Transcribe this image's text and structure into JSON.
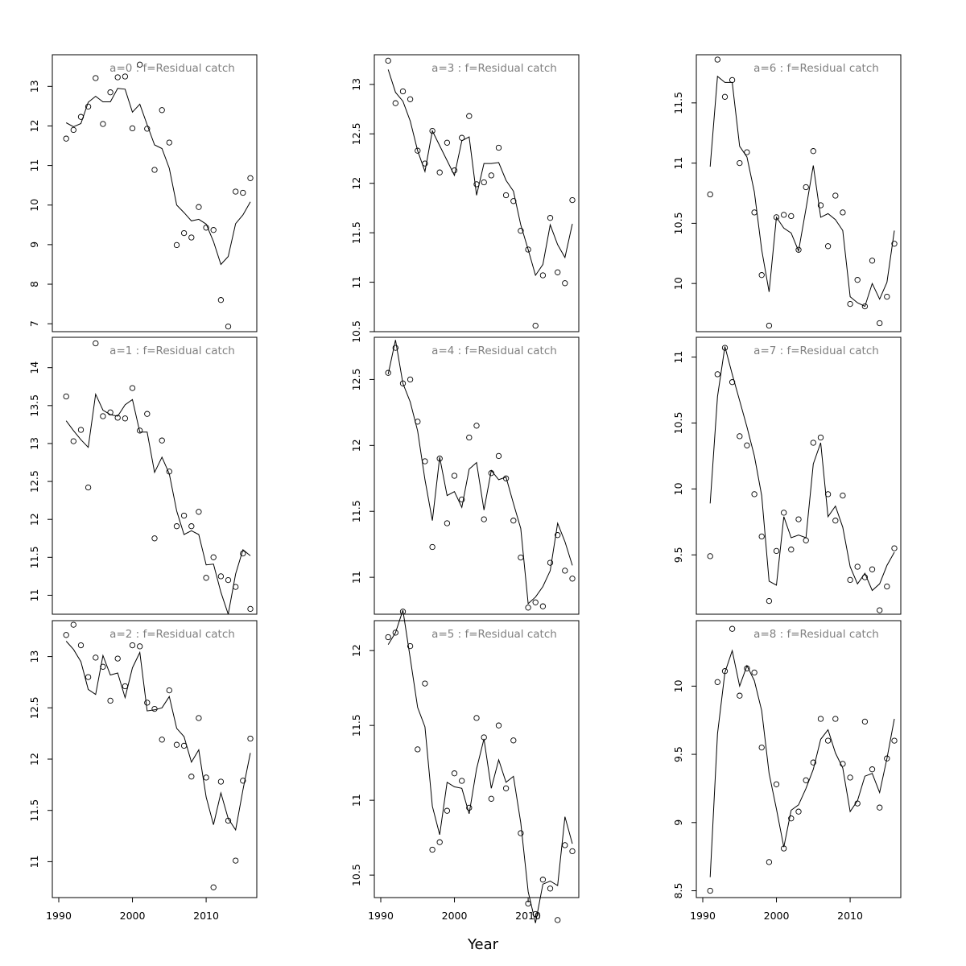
{
  "chart_data": {
    "type": "scatter",
    "xlabel": "Year",
    "x_axis": {
      "ticks": [
        1990,
        2000,
        2010
      ],
      "range": [
        1990,
        2016
      ]
    },
    "years": [
      1991,
      1992,
      1993,
      1994,
      1995,
      1996,
      1997,
      1998,
      1999,
      2000,
      2001,
      2002,
      2003,
      2004,
      2005,
      2006,
      2007,
      2008,
      2009,
      2010,
      2011,
      2012,
      2013,
      2014,
      2015,
      2016
    ],
    "panels": [
      {
        "title": "a=0  :  f=Residual catch",
        "ylim": [
          6.8,
          13.8
        ],
        "yticks": [
          7,
          8,
          9,
          10,
          11,
          12,
          13
        ],
        "observed": [
          11.68,
          11.9,
          12.23,
          12.49,
          13.21,
          12.05,
          12.85,
          13.23,
          13.25,
          11.94,
          13.55,
          11.93,
          10.89,
          12.4,
          11.58,
          8.99,
          9.29,
          9.18,
          9.95,
          9.43,
          9.37,
          7.6,
          6.93,
          10.34,
          10.31,
          10.68
        ],
        "fitted": [
          12.08,
          11.98,
          12.06,
          12.6,
          12.75,
          12.61,
          12.61,
          12.95,
          12.93,
          12.35,
          12.55,
          12.03,
          11.52,
          11.43,
          10.93,
          10.0,
          9.81,
          9.6,
          9.64,
          9.52,
          9.08,
          8.5,
          8.7,
          9.53,
          9.75,
          10.08
        ]
      },
      {
        "title": "a=3  :  f=Residual catch",
        "ylim": [
          10.5,
          13.3
        ],
        "yticks": [
          10.5,
          11.0,
          11.5,
          12.0,
          12.5,
          13.0
        ],
        "observed": [
          13.24,
          12.81,
          12.93,
          12.85,
          12.33,
          12.2,
          12.53,
          12.11,
          12.41,
          12.13,
          12.46,
          12.68,
          11.99,
          12.01,
          12.08,
          12.36,
          11.88,
          11.82,
          11.52,
          11.33,
          10.56,
          11.07,
          11.65,
          11.1,
          10.99,
          11.83
        ],
        "fitted": [
          13.15,
          12.92,
          12.83,
          12.63,
          12.33,
          12.12,
          12.53,
          12.38,
          12.23,
          12.08,
          12.43,
          12.47,
          11.88,
          12.2,
          12.2,
          12.21,
          12.03,
          11.92,
          11.58,
          11.33,
          11.07,
          11.18,
          11.58,
          11.38,
          11.25,
          11.59
        ]
      },
      {
        "title": "a=6  :  f=Residual catch",
        "ylim": [
          9.6,
          11.9
        ],
        "yticks": [
          10.0,
          10.5,
          11.0,
          11.5
        ],
        "observed": [
          10.74,
          11.86,
          11.55,
          11.69,
          11.0,
          11.09,
          10.59,
          10.07,
          9.65,
          10.55,
          10.57,
          10.56,
          10.28,
          10.8,
          11.1,
          10.65,
          10.31,
          10.73,
          10.59,
          9.83,
          10.03,
          9.81,
          10.19,
          9.67,
          9.89,
          10.33
        ],
        "fitted": [
          10.97,
          11.72,
          11.67,
          11.67,
          11.14,
          11.05,
          10.76,
          10.28,
          9.93,
          10.55,
          10.46,
          10.42,
          10.27,
          10.62,
          10.98,
          10.55,
          10.58,
          10.53,
          10.44,
          9.89,
          9.84,
          9.81,
          10.0,
          9.87,
          10.01,
          10.44
        ]
      },
      {
        "title": "a=1  :  f=Residual catch",
        "ylim": [
          10.75,
          14.4
        ],
        "yticks": [
          11.0,
          11.5,
          12.0,
          12.5,
          13.0,
          13.5,
          14.0
        ],
        "observed": [
          13.62,
          13.03,
          13.18,
          12.42,
          14.32,
          13.36,
          13.41,
          13.34,
          13.33,
          13.73,
          13.17,
          13.39,
          11.75,
          13.04,
          12.63,
          11.91,
          12.05,
          11.91,
          12.1,
          11.23,
          11.5,
          11.25,
          11.2,
          11.11,
          11.55,
          10.82
        ],
        "fitted": [
          13.3,
          13.17,
          13.05,
          12.95,
          13.65,
          13.44,
          13.38,
          13.36,
          13.51,
          13.58,
          13.15,
          13.15,
          12.62,
          12.82,
          12.6,
          12.11,
          11.8,
          11.85,
          11.8,
          11.4,
          11.41,
          11.04,
          10.75,
          11.28,
          11.6,
          11.52
        ]
      },
      {
        "title": "a=4  :  f=Residual catch",
        "ylim": [
          10.72,
          12.82
        ],
        "yticks": [
          11.0,
          11.5,
          12.0,
          12.5
        ],
        "observed": [
          12.55,
          12.74,
          12.47,
          12.5,
          12.18,
          11.88,
          11.23,
          11.9,
          11.41,
          11.77,
          11.59,
          12.06,
          12.15,
          11.44,
          11.79,
          11.92,
          11.75,
          11.43,
          11.15,
          10.77,
          10.81,
          10.78,
          11.11,
          11.32,
          11.05,
          10.99
        ],
        "fitted": [
          12.54,
          12.8,
          12.47,
          12.33,
          12.11,
          11.74,
          11.43,
          11.91,
          11.62,
          11.65,
          11.53,
          11.82,
          11.87,
          11.51,
          11.81,
          11.74,
          11.76,
          11.56,
          11.37,
          10.8,
          10.85,
          10.93,
          11.05,
          11.41,
          11.27,
          11.09
        ]
      },
      {
        "title": "a=7  :  f=Residual catch",
        "ylim": [
          9.05,
          11.15
        ],
        "yticks": [
          9.5,
          10.0,
          10.5,
          11.0
        ],
        "observed": [
          9.49,
          10.87,
          11.07,
          10.81,
          10.4,
          10.33,
          9.96,
          9.64,
          9.15,
          9.53,
          9.82,
          9.54,
          9.77,
          9.61,
          10.35,
          10.39,
          9.96,
          9.76,
          9.95,
          9.31,
          9.41,
          9.33,
          9.39,
          9.08,
          9.26,
          9.55
        ],
        "fitted": [
          9.89,
          10.7,
          11.08,
          10.87,
          10.67,
          10.47,
          10.25,
          9.95,
          9.3,
          9.27,
          9.79,
          9.63,
          9.65,
          9.63,
          10.19,
          10.35,
          9.79,
          9.87,
          9.71,
          9.41,
          9.28,
          9.36,
          9.23,
          9.28,
          9.42,
          9.52
        ]
      },
      {
        "title": "a=2  :  f=Residual catch",
        "ylim": [
          10.65,
          13.35
        ],
        "yticks": [
          11.0,
          11.5,
          12.0,
          12.5,
          13.0
        ],
        "observed": [
          13.21,
          13.31,
          13.11,
          12.8,
          12.99,
          12.9,
          12.57,
          12.98,
          12.71,
          13.11,
          13.1,
          12.55,
          12.49,
          12.19,
          12.67,
          12.14,
          12.13,
          11.83,
          12.4,
          11.82,
          10.75,
          11.78,
          11.4,
          11.01,
          11.79,
          12.2
        ],
        "fitted": [
          13.15,
          13.07,
          12.95,
          12.68,
          12.63,
          13.01,
          12.82,
          12.84,
          12.6,
          12.89,
          13.04,
          12.47,
          12.48,
          12.5,
          12.61,
          12.3,
          12.22,
          11.97,
          12.09,
          11.63,
          11.36,
          11.67,
          11.42,
          11.31,
          11.7,
          12.06
        ]
      },
      {
        "title": "a=5  :  f=Residual catch",
        "ylim": [
          10.35,
          12.2
        ],
        "yticks": [
          10.5,
          11.0,
          11.5,
          12.0
        ],
        "observed": [
          12.09,
          12.12,
          12.26,
          12.03,
          11.34,
          11.78,
          10.67,
          10.72,
          10.93,
          11.18,
          11.13,
          10.95,
          11.55,
          11.42,
          11.01,
          11.5,
          11.08,
          11.4,
          10.78,
          10.31,
          10.24,
          10.47,
          10.41,
          10.2,
          10.7,
          10.66
        ],
        "fitted": [
          12.04,
          12.12,
          12.27,
          11.95,
          11.62,
          11.49,
          10.96,
          10.77,
          11.12,
          11.09,
          11.08,
          10.91,
          11.21,
          11.41,
          11.08,
          11.27,
          11.12,
          11.16,
          10.85,
          10.39,
          10.18,
          10.44,
          10.46,
          10.43,
          10.89,
          10.71
        ]
      },
      {
        "title": "a=8  :  f=Residual catch",
        "ylim": [
          8.45,
          10.48
        ],
        "yticks": [
          8.5,
          9.0,
          9.5,
          10.0
        ],
        "observed": [
          8.5,
          10.03,
          10.11,
          10.42,
          9.93,
          10.13,
          10.1,
          9.55,
          8.71,
          9.28,
          8.81,
          9.03,
          9.08,
          9.31,
          9.44,
          9.76,
          9.6,
          9.76,
          9.43,
          9.33,
          9.14,
          9.74,
          9.39,
          9.11,
          9.47,
          9.6
        ],
        "fitted": [
          8.6,
          9.65,
          10.1,
          10.26,
          10.0,
          10.15,
          10.04,
          9.82,
          9.36,
          9.1,
          8.82,
          9.09,
          9.13,
          9.25,
          9.39,
          9.61,
          9.68,
          9.51,
          9.4,
          9.08,
          9.16,
          9.34,
          9.36,
          9.22,
          9.47,
          9.76
        ]
      }
    ]
  }
}
